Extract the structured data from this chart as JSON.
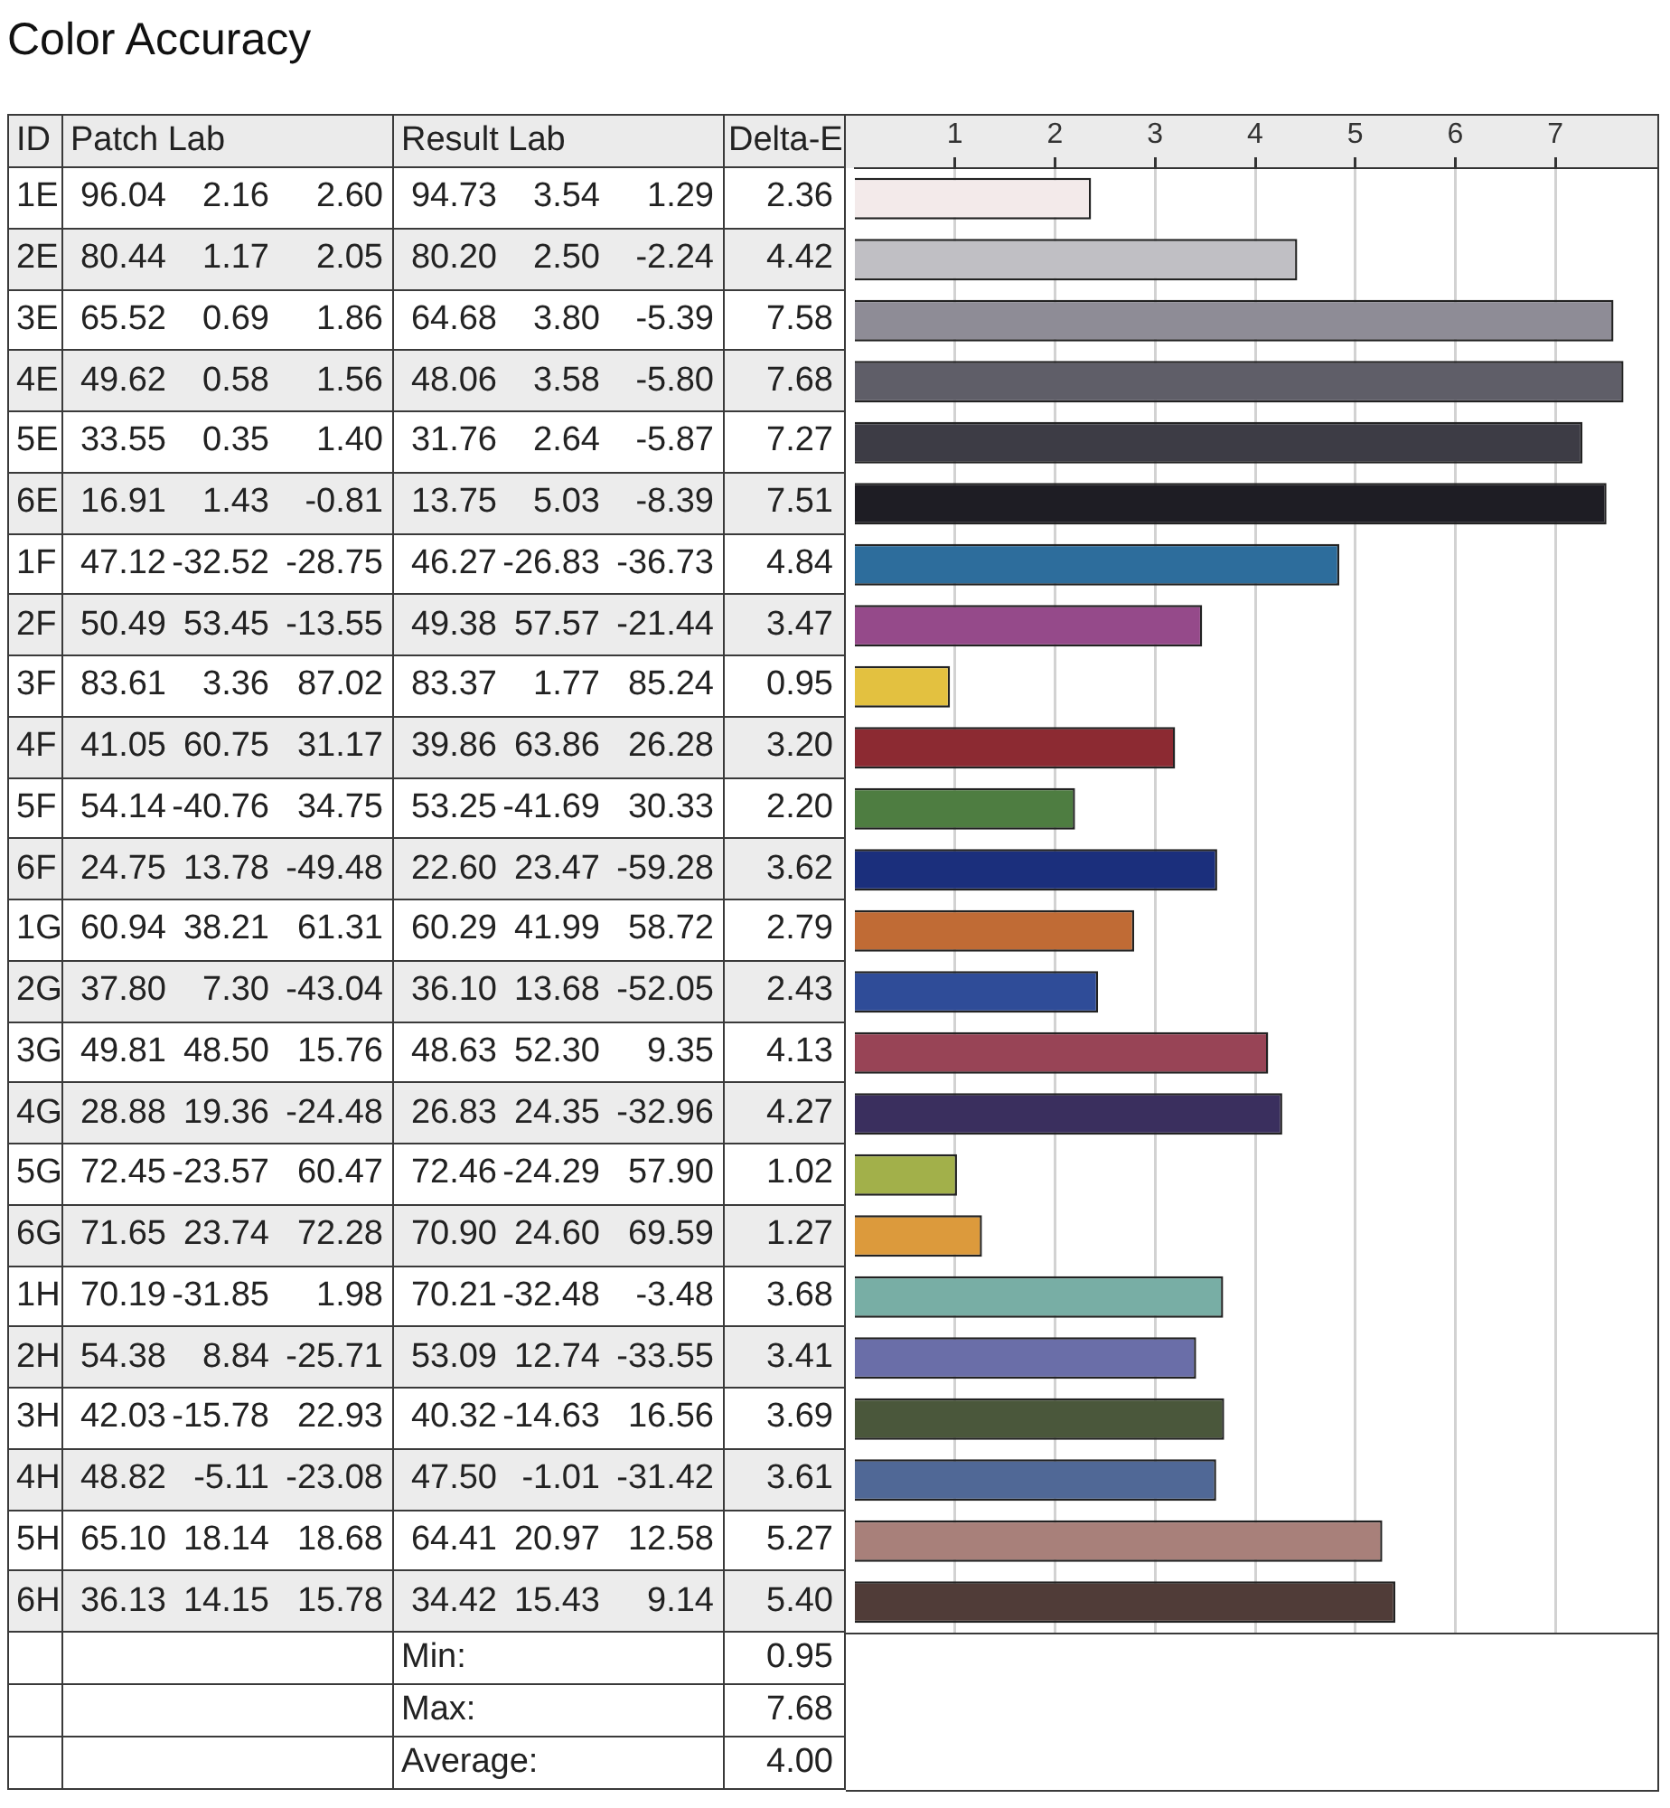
{
  "chart_data": {
    "type": "bar",
    "orientation": "horizontal",
    "title": "Color Accuracy",
    "ylabel": "ID",
    "x2label": "Delta-E",
    "categories": [
      "1E",
      "2E",
      "3E",
      "4E",
      "5E",
      "6E",
      "1F",
      "2F",
      "3F",
      "4F",
      "5F",
      "6F",
      "1G",
      "2G",
      "3G",
      "4G",
      "5G",
      "6G",
      "1H",
      "2H",
      "3H",
      "4H",
      "5H",
      "6H"
    ],
    "values": [
      2.36,
      4.42,
      7.58,
      7.68,
      7.27,
      7.51,
      4.84,
      3.47,
      0.95,
      3.2,
      2.2,
      3.62,
      2.79,
      2.43,
      4.13,
      4.27,
      1.02,
      1.27,
      3.68,
      3.41,
      3.69,
      3.61,
      5.27,
      5.4
    ],
    "value_labels": [
      "2.36",
      "4.42",
      "7.58",
      "7.68",
      "7.27",
      "7.51",
      "4.84",
      "3.47",
      "0.95",
      "3.20",
      "2.20",
      "3.62",
      "2.79",
      "2.43",
      "4.13",
      "4.27",
      "1.02",
      "1.27",
      "3.68",
      "3.41",
      "3.69",
      "3.61",
      "5.27",
      "5.40"
    ],
    "colors": [
      "#f3eaea",
      "#c0bfc4",
      "#8e8c96",
      "#5f5e68",
      "#3d3c45",
      "#1e1d24",
      "#2d6d9c",
      "#954a8a",
      "#e3c140",
      "#8c2a32",
      "#4e7d41",
      "#1b2f7c",
      "#c06b35",
      "#2f4c98",
      "#984456",
      "#3a2f5e",
      "#a2b04a",
      "#dc9a3c",
      "#78aea5",
      "#6a6ea8",
      "#4a573b",
      "#506896",
      "#a8807a",
      "#503c38"
    ],
    "x2lim": [
      0,
      8
    ],
    "x2ticks": [
      1,
      2,
      3,
      4,
      5,
      6,
      7
    ],
    "grid": "x",
    "annotations": [
      "Patch Lab",
      "Result Lab",
      "96.04",
      "2.16",
      "2.60",
      "94.73",
      "3.54",
      "1.29",
      "80.44",
      "1.17",
      "2.05",
      "80.20",
      "2.50",
      "-2.24",
      "65.52",
      "0.69",
      "1.86",
      "64.68",
      "3.80",
      "-5.39",
      "49.62",
      "0.58",
      "1.56",
      "48.06",
      "3.58",
      "-5.80",
      "33.55",
      "0.35",
      "1.40",
      "31.76",
      "2.64",
      "-5.87",
      "16.91",
      "1.43",
      "-0.81",
      "13.75",
      "5.03",
      "-8.39",
      "47.12",
      "-32.52",
      "-28.75",
      "46.27",
      "-26.83",
      "-36.73",
      "50.49",
      "53.45",
      "-13.55",
      "49.38",
      "57.57",
      "-21.44",
      "83.61",
      "3.36",
      "87.02",
      "83.37",
      "1.77",
      "85.24",
      "41.05",
      "60.75",
      "31.17",
      "39.86",
      "63.86",
      "26.28",
      "54.14",
      "-40.76",
      "34.75",
      "53.25",
      "-41.69",
      "30.33",
      "24.75",
      "13.78",
      "-49.48",
      "22.60",
      "23.47",
      "-59.28",
      "60.94",
      "38.21",
      "61.31",
      "60.29",
      "41.99",
      "58.72",
      "37.80",
      "7.30",
      "-43.04",
      "36.10",
      "13.68",
      "-52.05",
      "49.81",
      "48.50",
      "15.76",
      "48.63",
      "52.30",
      "9.35",
      "28.88",
      "19.36",
      "-24.48",
      "26.83",
      "24.35",
      "-32.96",
      "72.45",
      "-23.57",
      "60.47",
      "72.46",
      "-24.29",
      "57.90",
      "71.65",
      "23.74",
      "72.28",
      "70.90",
      "24.60",
      "69.59",
      "70.19",
      "-31.85",
      "1.98",
      "70.21",
      "-32.48",
      "-3.48",
      "54.38",
      "8.84",
      "-25.71",
      "53.09",
      "12.74",
      "-33.55",
      "42.03",
      "-15.78",
      "22.93",
      "40.32",
      "-14.63",
      "16.56",
      "48.82",
      "-5.11",
      "-23.08",
      "47.50",
      "-1.01",
      "-31.42",
      "65.10",
      "18.14",
      "18.68",
      "64.41",
      "20.97",
      "12.58",
      "36.13",
      "14.15",
      "15.78",
      "34.42",
      "15.43",
      "9.14",
      "Min:",
      "0.95",
      "Max:",
      "7.68",
      "Average:",
      "4.00"
    ]
  }
}
